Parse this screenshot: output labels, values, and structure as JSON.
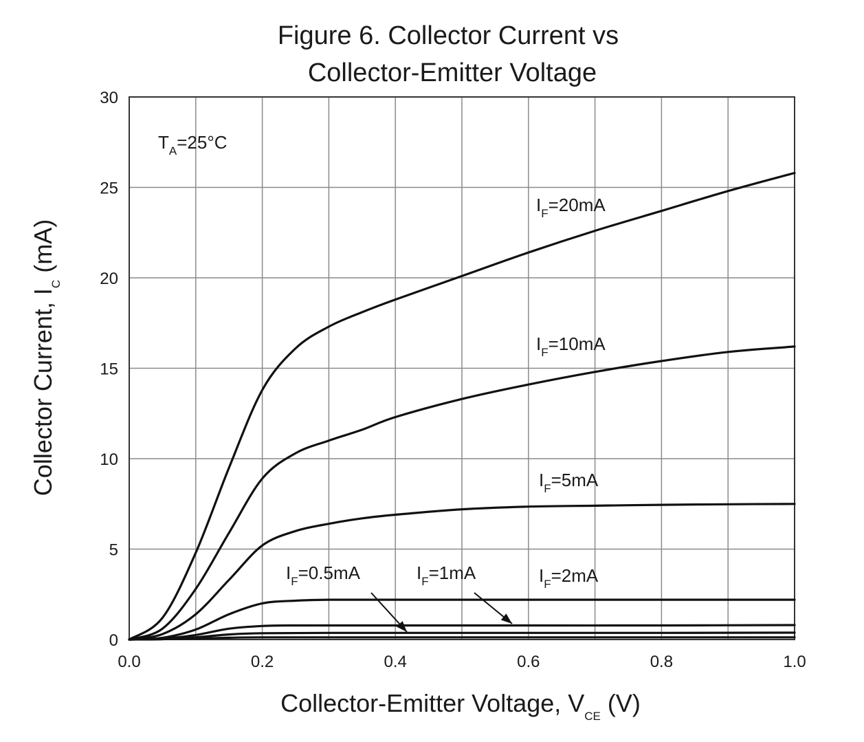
{
  "chart_data": {
    "type": "line",
    "title_line1": "Figure 6. Collector Current vs",
    "title_line2": "Collector-Emitter Voltage",
    "xlabel_main": "Collector-Emitter Voltage, V",
    "xlabel_sub": "CE",
    "xlabel_unit": " (V)",
    "ylabel_main": "Collector Current, I",
    "ylabel_sub": "C",
    "ylabel_unit": " (mA)",
    "xlim": [
      0,
      1.0
    ],
    "ylim": [
      0,
      30
    ],
    "x_ticks": [
      "0.0",
      "0.2",
      "0.4",
      "0.6",
      "0.8",
      "1.0"
    ],
    "y_ticks": [
      "0",
      "5",
      "10",
      "15",
      "20",
      "25",
      "30"
    ],
    "grid": true,
    "condition": {
      "main": "T",
      "sub": "A",
      "rest": "=25°C"
    },
    "series": [
      {
        "name": "IF=20mA",
        "label_main": "I",
        "label_sub": "F",
        "label_rest": "=20mA",
        "x": [
          0,
          0.05,
          0.1,
          0.15,
          0.2,
          0.25,
          0.3,
          0.35,
          0.4,
          0.5,
          0.6,
          0.7,
          0.8,
          0.9,
          1.0
        ],
        "y": [
          0,
          1.2,
          4.8,
          9.5,
          13.8,
          16.1,
          17.3,
          18.1,
          18.8,
          20.1,
          21.4,
          22.6,
          23.7,
          24.8,
          25.8
        ]
      },
      {
        "name": "IF=10mA",
        "label_main": "I",
        "label_sub": "F",
        "label_rest": "=10mA",
        "x": [
          0,
          0.05,
          0.1,
          0.15,
          0.2,
          0.25,
          0.3,
          0.35,
          0.4,
          0.5,
          0.6,
          0.7,
          0.8,
          0.9,
          1.0
        ],
        "y": [
          0,
          0.6,
          2.8,
          5.9,
          8.9,
          10.3,
          11.0,
          11.6,
          12.3,
          13.3,
          14.1,
          14.8,
          15.4,
          15.9,
          16.2
        ]
      },
      {
        "name": "IF=5mA",
        "label_main": "I",
        "label_sub": "F",
        "label_rest": "=5mA",
        "x": [
          0,
          0.05,
          0.1,
          0.15,
          0.2,
          0.25,
          0.3,
          0.35,
          0.4,
          0.5,
          0.6,
          0.7,
          0.8,
          0.9,
          1.0
        ],
        "y": [
          0,
          0.3,
          1.4,
          3.3,
          5.2,
          6.0,
          6.4,
          6.7,
          6.9,
          7.2,
          7.35,
          7.4,
          7.45,
          7.48,
          7.5
        ]
      },
      {
        "name": "IF=2mA",
        "label_main": "I",
        "label_sub": "F",
        "label_rest": "=2mA",
        "x": [
          0,
          0.05,
          0.1,
          0.15,
          0.2,
          0.25,
          0.3,
          0.4,
          0.6,
          0.8,
          1.0
        ],
        "y": [
          0,
          0.1,
          0.55,
          1.4,
          2.0,
          2.15,
          2.2,
          2.2,
          2.2,
          2.2,
          2.2
        ]
      },
      {
        "name": "IF=1mA",
        "label_main": "I",
        "label_sub": "F",
        "label_rest": "=1mA",
        "x": [
          0,
          0.05,
          0.1,
          0.15,
          0.2,
          0.25,
          0.4,
          0.6,
          0.8,
          1.0
        ],
        "y": [
          0,
          0.05,
          0.25,
          0.6,
          0.75,
          0.78,
          0.78,
          0.78,
          0.78,
          0.8
        ]
      },
      {
        "name": "IF=0.5mA",
        "label_main": "I",
        "label_sub": "F",
        "label_rest": "=0.5mA",
        "x": [
          0,
          0.05,
          0.1,
          0.15,
          0.2,
          0.3,
          0.5,
          0.8,
          1.0
        ],
        "y": [
          0,
          0.02,
          0.12,
          0.28,
          0.35,
          0.37,
          0.37,
          0.37,
          0.38
        ]
      }
    ],
    "extra_curves": [
      {
        "x": [
          0,
          0.1,
          0.15,
          0.2,
          0.4,
          1.0
        ],
        "y": [
          0,
          0.05,
          0.1,
          0.12,
          0.12,
          0.12
        ]
      }
    ]
  }
}
